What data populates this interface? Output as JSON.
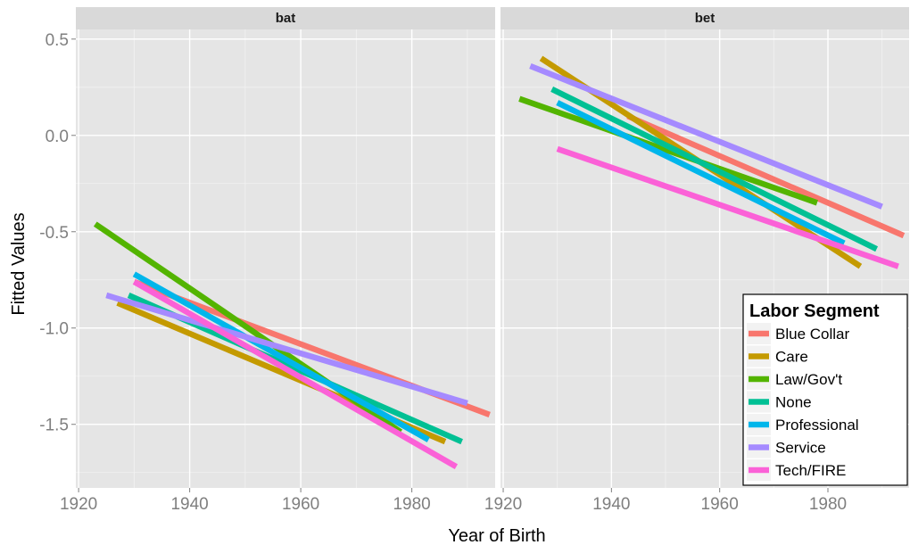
{
  "chart_data": {
    "type": "line",
    "xlabel": "Year of Birth",
    "ylabel": "Fitted Values",
    "xlim": [
      1919.5,
      1995
    ],
    "ylim": [
      -1.83,
      0.55
    ],
    "x_ticks": [
      1920,
      1940,
      1960,
      1980
    ],
    "x_tick_labels": [
      "1920",
      "1940",
      "1960",
      "1980"
    ],
    "y_ticks": [
      0.5,
      0.0,
      -0.5,
      -1.0,
      -1.5
    ],
    "y_tick_labels": [
      "0.5",
      "0.0",
      "-0.5",
      "-1.0",
      "-1.5"
    ],
    "grid": true,
    "legend": {
      "title": "Labor Segment",
      "placement": "bottom-right",
      "entries": [
        "Blue Collar",
        "Care",
        "Law/Gov't",
        "None",
        "Professional",
        "Service",
        "Tech/FIRE"
      ]
    },
    "colors": {
      "Blue Collar": "#F8766D",
      "Care": "#C49A00",
      "Law/Gov't": "#53B400",
      "None": "#00C094",
      "Professional": "#00B6EB",
      "Service": "#A58AFF",
      "Tech/FIRE": "#FB61D7"
    },
    "facets": [
      {
        "label": "bat",
        "series": [
          {
            "name": "Blue Collar",
            "x": [
              1930,
              1994
            ],
            "y": [
              -0.76,
              -1.45
            ]
          },
          {
            "name": "Care",
            "x": [
              1927,
              1986
            ],
            "y": [
              -0.87,
              -1.59
            ]
          },
          {
            "name": "Law/Gov't",
            "x": [
              1923,
              1978
            ],
            "y": [
              -0.46,
              -1.54
            ]
          },
          {
            "name": "None",
            "x": [
              1929,
              1989
            ],
            "y": [
              -0.83,
              -1.59
            ]
          },
          {
            "name": "Professional",
            "x": [
              1930,
              1983
            ],
            "y": [
              -0.72,
              -1.58
            ]
          },
          {
            "name": "Service",
            "x": [
              1925,
              1990
            ],
            "y": [
              -0.83,
              -1.39
            ]
          },
          {
            "name": "Tech/FIRE",
            "x": [
              1930,
              1988
            ],
            "y": [
              -0.76,
              -1.72
            ]
          }
        ]
      },
      {
        "label": "bet",
        "series": [
          {
            "name": "Blue Collar",
            "x": [
              1943,
              1994
            ],
            "y": [
              0.1,
              -0.52
            ]
          },
          {
            "name": "Care",
            "x": [
              1927,
              1986
            ],
            "y": [
              0.4,
              -0.68
            ]
          },
          {
            "name": "Law/Gov't",
            "x": [
              1923,
              1978
            ],
            "y": [
              0.19,
              -0.35
            ]
          },
          {
            "name": "None",
            "x": [
              1929,
              1989
            ],
            "y": [
              0.24,
              -0.59
            ]
          },
          {
            "name": "Professional",
            "x": [
              1930,
              1983
            ],
            "y": [
              0.17,
              -0.56
            ]
          },
          {
            "name": "Service",
            "x": [
              1925,
              1990
            ],
            "y": [
              0.36,
              -0.37
            ]
          },
          {
            "name": "Tech/FIRE",
            "x": [
              1930,
              1993
            ],
            "y": [
              -0.07,
              -0.68
            ]
          }
        ]
      }
    ]
  }
}
